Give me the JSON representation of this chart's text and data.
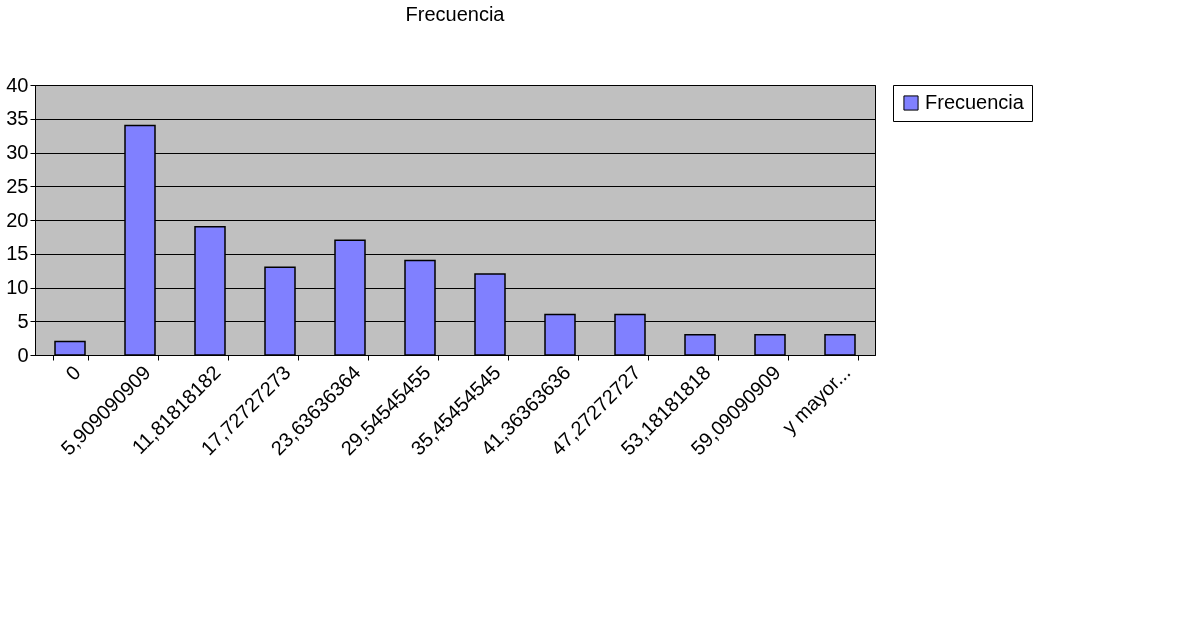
{
  "chart_data": {
    "type": "bar",
    "title": "Frecuencia",
    "categories": [
      "0",
      "5,909090909",
      "11,81818182",
      "17,72727273",
      "23,63636364",
      "29,54545455",
      "35,45454545",
      "41,36363636",
      "47,27272727",
      "53,18181818",
      "59,09090909",
      "y mayor..."
    ],
    "series": [
      {
        "name": "Frecuencia",
        "color": "#8080ff",
        "values": [
          2,
          34,
          19,
          13,
          17,
          14,
          12,
          6,
          6,
          3,
          3,
          3
        ]
      }
    ],
    "ylim": [
      0,
      40
    ],
    "yticks": [
      0,
      5,
      10,
      15,
      20,
      25,
      30,
      35,
      40
    ],
    "grid": "y",
    "legend": "right"
  }
}
